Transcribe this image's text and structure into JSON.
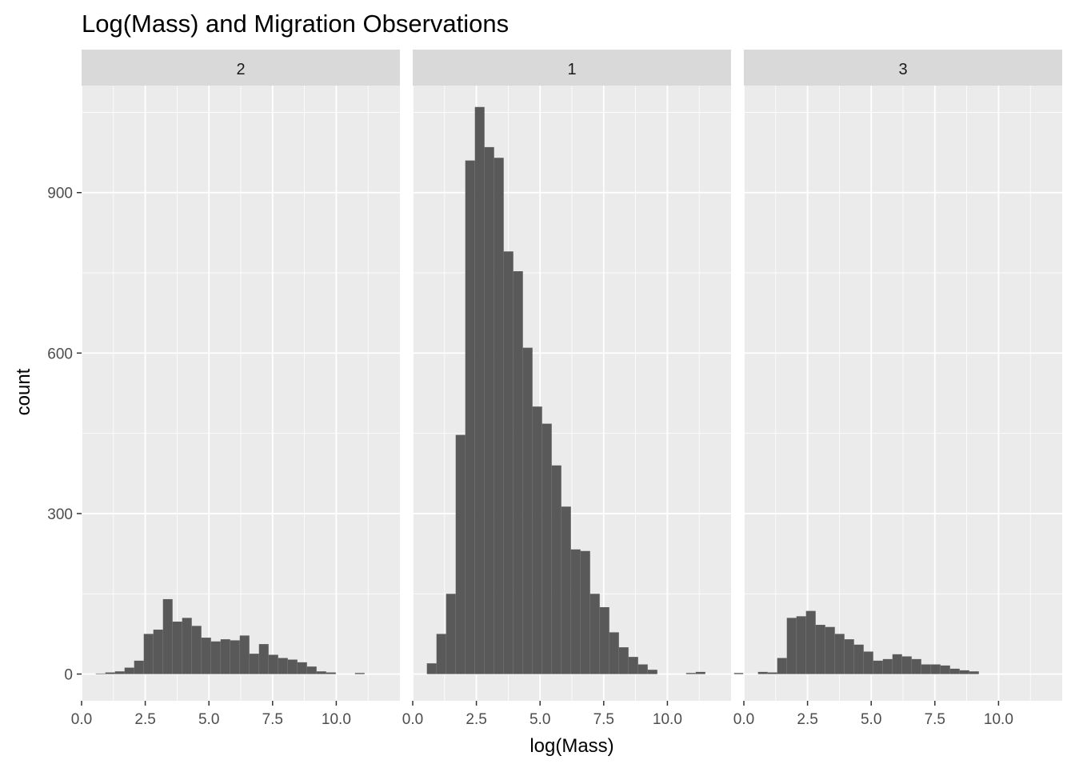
{
  "chart_data": {
    "type": "bar",
    "title": "Log(Mass) and Migration Observations",
    "xlabel": "log(Mass)",
    "ylabel": "count",
    "xlim": [
      0,
      12.5
    ],
    "ylim": [
      -50,
      1100
    ],
    "x_ticks": [
      "0.0",
      "2.5",
      "5.0",
      "7.5",
      "10.0"
    ],
    "x_tick_values": [
      0,
      2.5,
      5,
      7.5,
      10
    ],
    "y_ticks": [
      "0",
      "300",
      "600",
      "900"
    ],
    "y_tick_values": [
      0,
      300,
      600,
      900
    ],
    "grid": true,
    "bar_color": "#595959",
    "panel_bg": "#ebebeb",
    "strip_bg": "#d9d9d9",
    "bin_width": 0.377,
    "bin_start": 0.556,
    "panels": [
      {
        "strip_label": "2",
        "counts": [
          1,
          3,
          5,
          12,
          25,
          75,
          83,
          140,
          98,
          105,
          90,
          68,
          61,
          65,
          63,
          72,
          38,
          56,
          36,
          30,
          27,
          22,
          14,
          5,
          3,
          0,
          0,
          2
        ]
      },
      {
        "strip_label": "1",
        "counts": [
          20,
          75,
          150,
          447,
          960,
          1060,
          985,
          965,
          790,
          753,
          610,
          500,
          468,
          390,
          313,
          233,
          230,
          150,
          125,
          78,
          50,
          32,
          18,
          8,
          0,
          0,
          0,
          2,
          4,
          0,
          0,
          0,
          2
        ]
      },
      {
        "strip_label": "3",
        "counts": [
          4,
          3,
          30,
          105,
          108,
          118,
          92,
          88,
          75,
          65,
          55,
          42,
          25,
          28,
          37,
          33,
          28,
          18,
          18,
          16,
          10,
          7,
          5
        ]
      }
    ]
  }
}
